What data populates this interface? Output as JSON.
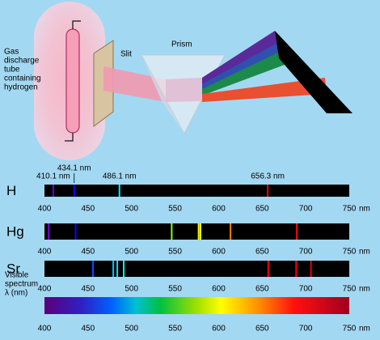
{
  "apparatus": {
    "source_label": [
      "Gas",
      "discharge",
      "tube",
      "containing",
      "hydrogen"
    ],
    "slit_label": "Slit",
    "prism_label": "Prism"
  },
  "axis": {
    "range": [
      400,
      750
    ],
    "ticks": [
      400,
      450,
      500,
      550,
      600,
      650,
      700,
      750
    ],
    "unit": "nm"
  },
  "spectra": [
    {
      "name": "H",
      "lines": [
        {
          "value": 410.1,
          "label": "410.1 nm"
        },
        {
          "value": 434.1,
          "label": "434.1 nm"
        },
        {
          "value": 486.1,
          "label": "486.1 nm"
        },
        {
          "value": 656.3,
          "label": "656.3 nm"
        }
      ]
    },
    {
      "name": "Hg",
      "lines": [
        404.7,
        435.8,
        546.1,
        577.0,
        579.1,
        613.6,
        689.7
      ]
    },
    {
      "name": "Sr",
      "lines": [
        455.7,
        479.0,
        483.6,
        491.0,
        657.0,
        689.0,
        706.0
      ]
    }
  ],
  "visible_spectrum": {
    "label": [
      "Visible",
      "spectrum",
      "λ (nm)"
    ]
  }
}
